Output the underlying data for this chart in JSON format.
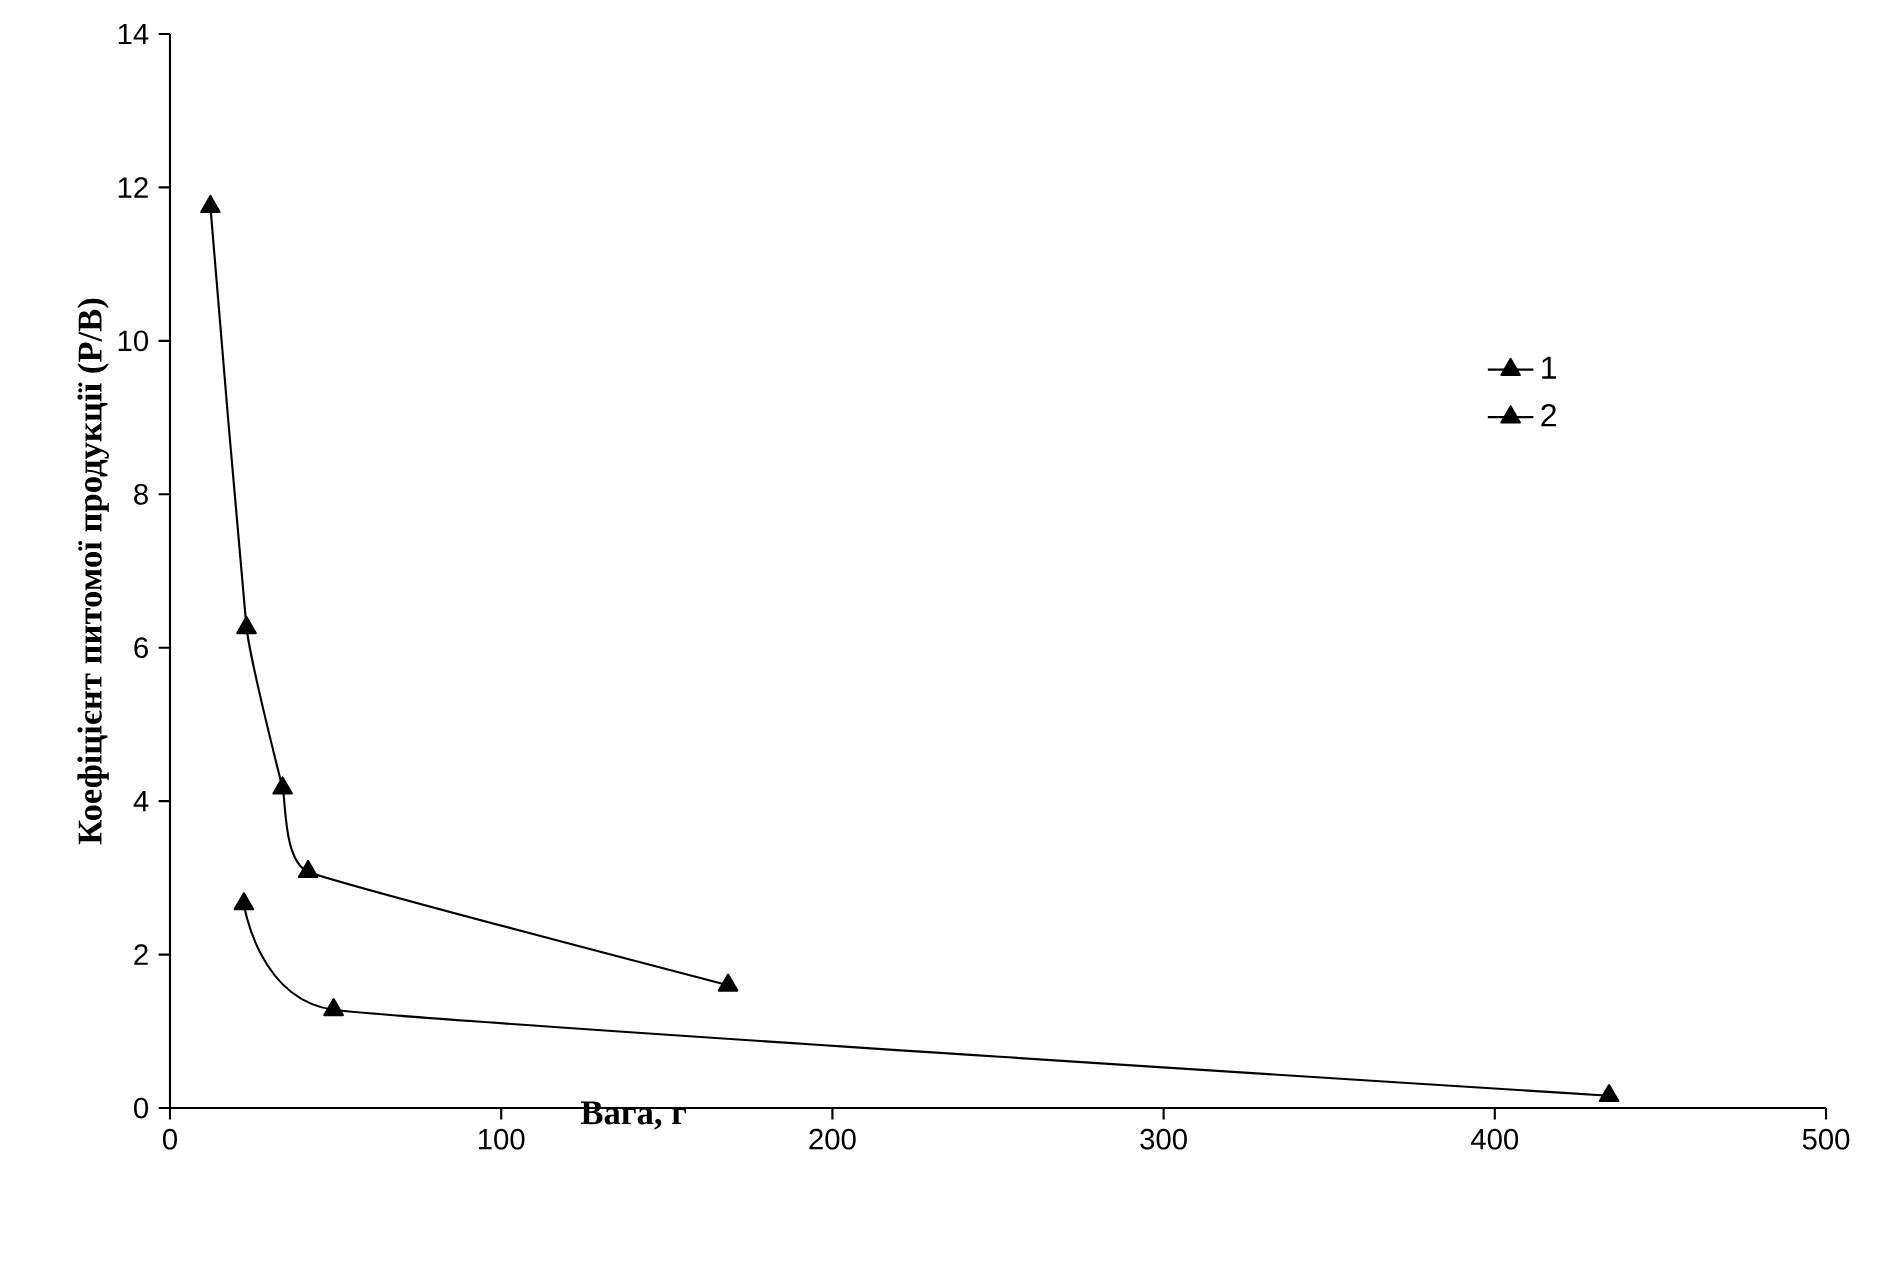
{
  "chart_data": {
    "type": "line",
    "xlabel": "Вага, г",
    "ylabel": "Коефіцієнт питомої продукції (P/B)",
    "xlim": [
      0,
      500
    ],
    "xticks": [
      0,
      100,
      200,
      300,
      400,
      500
    ],
    "ylim": [
      0,
      14
    ],
    "yticks": [
      0,
      2,
      4,
      6,
      8,
      10,
      12,
      14
    ],
    "legend": "right",
    "grid": false,
    "marker": "triangle",
    "line_style": "solid",
    "series": [
      {
        "name": "1",
        "color": "#000000",
        "x": [
          12.2,
          23.1,
          34,
          41.7,
          168.5
        ],
        "values": [
          11.75,
          6.26,
          4.17,
          3.08,
          1.6
        ]
      },
      {
        "name": "2",
        "color": "#000000",
        "x": [
          22.3,
          49.4,
          434.5
        ],
        "values": [
          2.66,
          1.28,
          0.16
        ]
      }
    ]
  }
}
